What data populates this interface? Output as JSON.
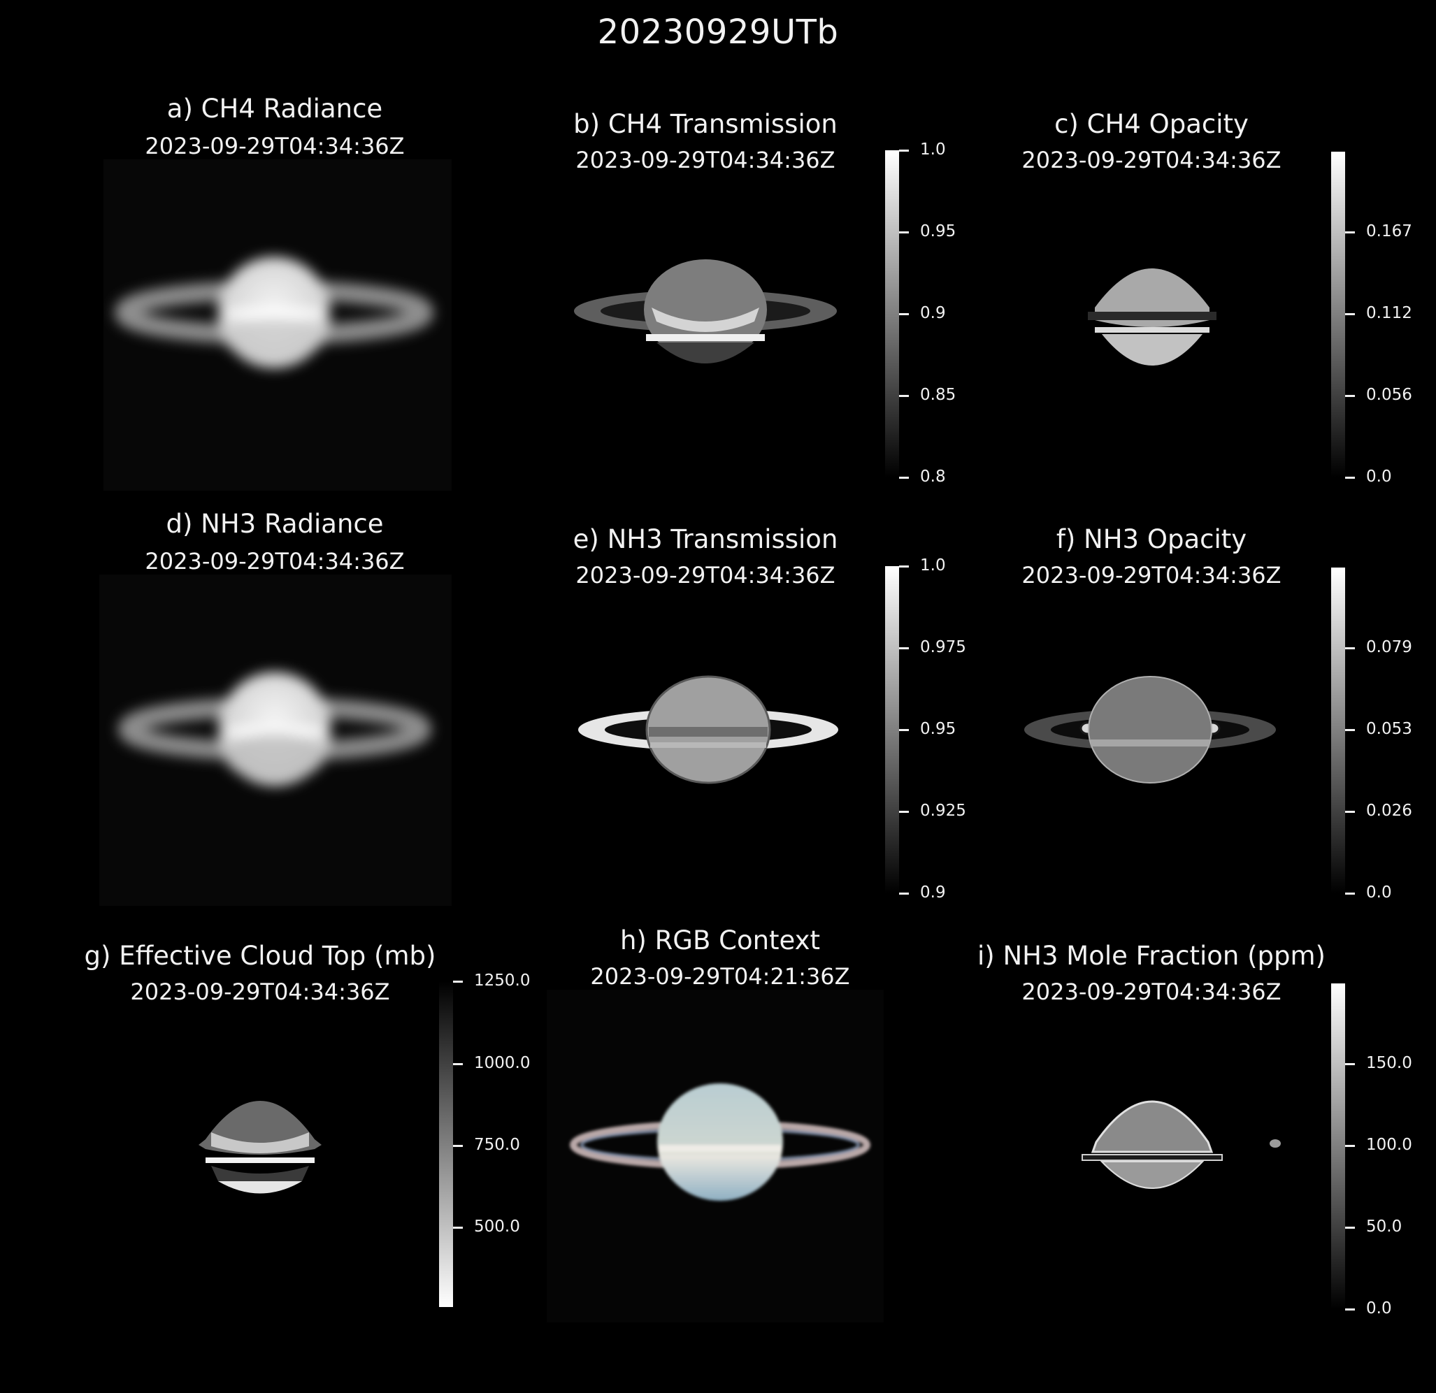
{
  "figure_title": "20230929UTb",
  "panels": {
    "a": {
      "title": "a) CH4 Radiance",
      "time": "2023-09-29T04:34:36Z"
    },
    "b": {
      "title": "b) CH4 Transmission",
      "time": "2023-09-29T04:34:36Z",
      "colorbar": {
        "ticks": [
          "1.0",
          "0.95",
          "0.9",
          "0.85",
          "0.8"
        ],
        "range": [
          0.8,
          1.0
        ],
        "colormap": "gray"
      }
    },
    "c": {
      "title": "c) CH4 Opacity",
      "time": "2023-09-29T04:34:36Z",
      "colorbar": {
        "ticks": [
          "0.167",
          "0.112",
          "0.056",
          "0.0"
        ],
        "range": [
          0.0,
          0.223
        ],
        "colormap": "gray"
      }
    },
    "d": {
      "title": "d) NH3 Radiance",
      "time": "2023-09-29T04:34:36Z"
    },
    "e": {
      "title": "e) NH3 Transmission",
      "time": "2023-09-29T04:34:36Z",
      "colorbar": {
        "ticks": [
          "1.0",
          "0.975",
          "0.95",
          "0.925",
          "0.9"
        ],
        "range": [
          0.9,
          1.0
        ],
        "colormap": "gray"
      }
    },
    "f": {
      "title": "f) NH3 Opacity",
      "time": "2023-09-29T04:34:36Z",
      "colorbar": {
        "ticks": [
          "0.079",
          "0.053",
          "0.026",
          "0.0"
        ],
        "range": [
          0.0,
          0.105
        ],
        "colormap": "gray"
      }
    },
    "g": {
      "title": "g) Effective Cloud Top (mb)",
      "time": "2023-09-29T04:34:36Z",
      "colorbar": {
        "ticks": [
          "1250.0",
          "1000.0",
          "750.0",
          "500.0"
        ],
        "colormap": "gray_r"
      }
    },
    "h": {
      "title": "h) RGB Context",
      "time": "2023-09-29T04:21:36Z"
    },
    "i": {
      "title": "i) NH3 Mole Fraction (ppm)",
      "time": "2023-09-29T04:34:36Z",
      "colorbar": {
        "ticks": [
          "150.0",
          "100.0",
          "50.0",
          "0.0"
        ],
        "range": [
          0,
          200
        ],
        "colormap": "gray"
      }
    }
  },
  "colors": {
    "background": "#000000",
    "text": "#f2f2f2"
  }
}
